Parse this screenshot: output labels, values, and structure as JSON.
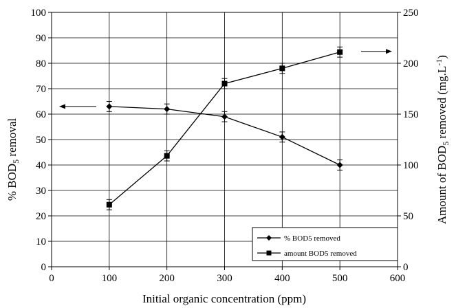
{
  "chart_data": {
    "type": "line",
    "title": "",
    "xlabel": "Initial organic concentration (ppm)",
    "ylabel_left": {
      "main": "% BOD",
      "sub": "5",
      "rest": " removal"
    },
    "ylabel_right": {
      "main": "Amount of BOD",
      "sub": "5",
      "rest": " removed (mg.L",
      "sup": "-1",
      "end": ")"
    },
    "xlim": [
      0,
      600
    ],
    "xticks": [
      0,
      100,
      200,
      300,
      400,
      500,
      600
    ],
    "ylim_left": [
      0,
      100
    ],
    "yticks_left": [
      0,
      10,
      20,
      30,
      40,
      50,
      60,
      70,
      80,
      90,
      100
    ],
    "ylim_right": [
      0,
      250
    ],
    "yticks_right": [
      0,
      50,
      100,
      150,
      200,
      250
    ],
    "grid": true,
    "legend_position": "bottom-right",
    "series": [
      {
        "name": "% BOD5 removed",
        "axis": "left",
        "marker": "diamond",
        "x": [
          100,
          200,
          300,
          400,
          500
        ],
        "y": [
          63,
          62,
          59,
          51,
          40
        ],
        "yerr": [
          2,
          2,
          2,
          2,
          2
        ]
      },
      {
        "name": "amount BOD5 removed",
        "axis": "right",
        "marker": "square",
        "x": [
          100,
          200,
          300,
          400,
          500
        ],
        "y": [
          61,
          109,
          180,
          195,
          211
        ],
        "yerr": [
          5,
          5,
          5,
          5,
          5
        ]
      }
    ]
  }
}
